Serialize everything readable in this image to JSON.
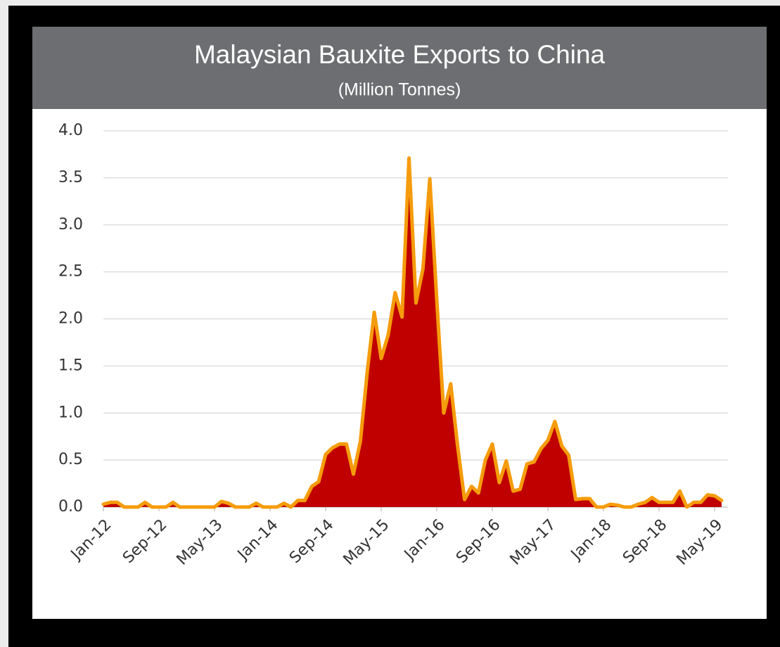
{
  "chart_data": {
    "type": "area",
    "title": "Malaysian Bauxite Exports to China",
    "subtitle": "(Million Tonnes)",
    "categories": [
      "Jan-12",
      null,
      null,
      null,
      null,
      null,
      null,
      null,
      "Sep-12",
      null,
      null,
      null,
      null,
      null,
      null,
      null,
      "May-13",
      null,
      null,
      null,
      null,
      null,
      null,
      null,
      "Jan-14",
      null,
      null,
      null,
      null,
      null,
      null,
      null,
      "Sep-14",
      null,
      null,
      null,
      null,
      null,
      null,
      null,
      "May-15",
      null,
      null,
      null,
      null,
      null,
      null,
      null,
      "Jan-16",
      null,
      null,
      null,
      null,
      null,
      null,
      null,
      "Sep-16",
      null,
      null,
      null,
      null,
      null,
      null,
      null,
      "May-17",
      null,
      null,
      null,
      null,
      null,
      null,
      null,
      "Jan-18",
      null,
      null,
      null,
      null,
      null,
      null,
      null,
      "Sep-18",
      null,
      null,
      null,
      null,
      null,
      null,
      null,
      "May-19",
      null
    ],
    "values": [
      0.03,
      0.05,
      0.05,
      0,
      0,
      0,
      0.05,
      0,
      0,
      0,
      0.05,
      0,
      0,
      0,
      0,
      0,
      0,
      0.06,
      0.04,
      0,
      0,
      0,
      0.04,
      0,
      0,
      0,
      0.04,
      0,
      0.07,
      0.07,
      0.22,
      0.27,
      0.56,
      0.63,
      0.67,
      0.67,
      0.35,
      0.7,
      1.45,
      2.07,
      1.58,
      1.83,
      2.28,
      2.02,
      3.71,
      2.17,
      2.53,
      3.49,
      2.2,
      1.0,
      1.31,
      0.65,
      0.08,
      0.22,
      0.15,
      0.5,
      0.67,
      0.26,
      0.49,
      0.17,
      0.19,
      0.46,
      0.48,
      0.62,
      0.71,
      0.91,
      0.65,
      0.55,
      0.08,
      0.09,
      0.09,
      0,
      0,
      0.03,
      0.02,
      0,
      0,
      0.03,
      0.05,
      0.1,
      0.05,
      0.05,
      0.05,
      0.17,
      0,
      0.05,
      0.05,
      0.13,
      0.12,
      0.07
    ],
    "color": "#c00000",
    "line_color": "#f59c0c",
    "ylim": [
      0,
      4
    ],
    "yticks": [
      {
        "value": 0,
        "label": "0.0"
      },
      {
        "value": 0.5,
        "label": "0.5"
      },
      {
        "value": 1,
        "label": "1.0"
      },
      {
        "value": 1.5,
        "label": "1.5"
      },
      {
        "value": 2,
        "label": "2.0"
      },
      {
        "value": 2.5,
        "label": "2.5"
      },
      {
        "value": 3,
        "label": "3.0"
      },
      {
        "value": 3.5,
        "label": "3.5"
      },
      {
        "value": 4,
        "label": "4.0"
      }
    ],
    "grid": true
  }
}
